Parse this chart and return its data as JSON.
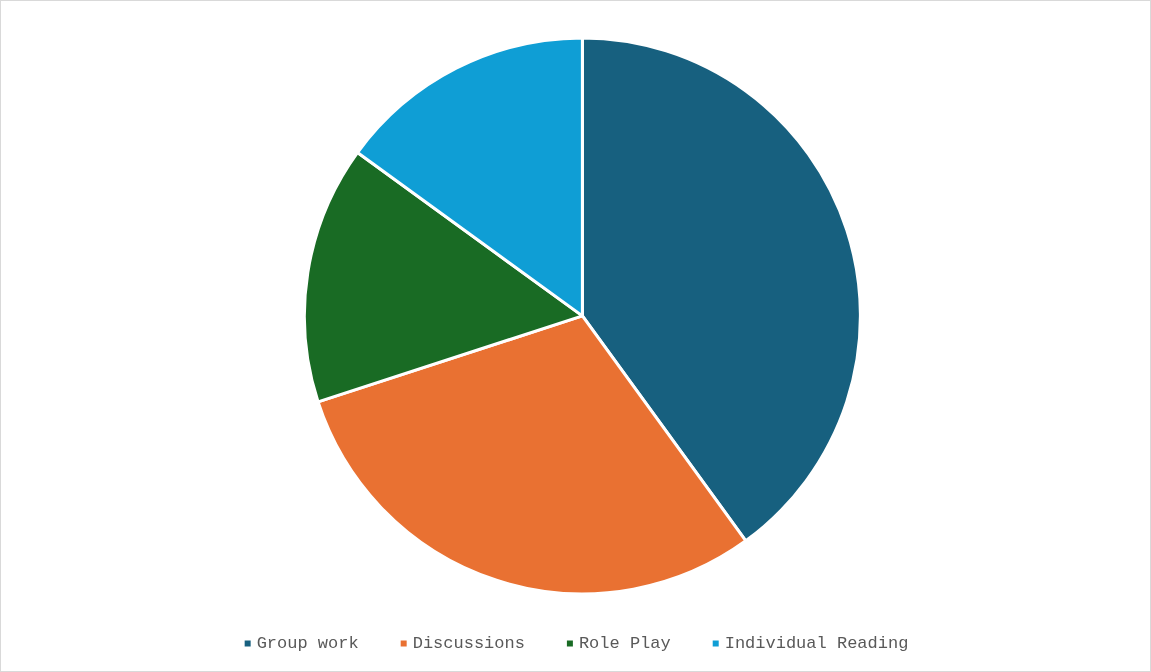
{
  "chart_data": {
    "type": "pie",
    "categories": [
      "Group work",
      "Discussions",
      "Role Play",
      "Individual Reading"
    ],
    "values": [
      40,
      30,
      15,
      15
    ],
    "colors": [
      "#17607f",
      "#e97132",
      "#196b24",
      "#0f9ed5"
    ],
    "legend": "bottom"
  }
}
